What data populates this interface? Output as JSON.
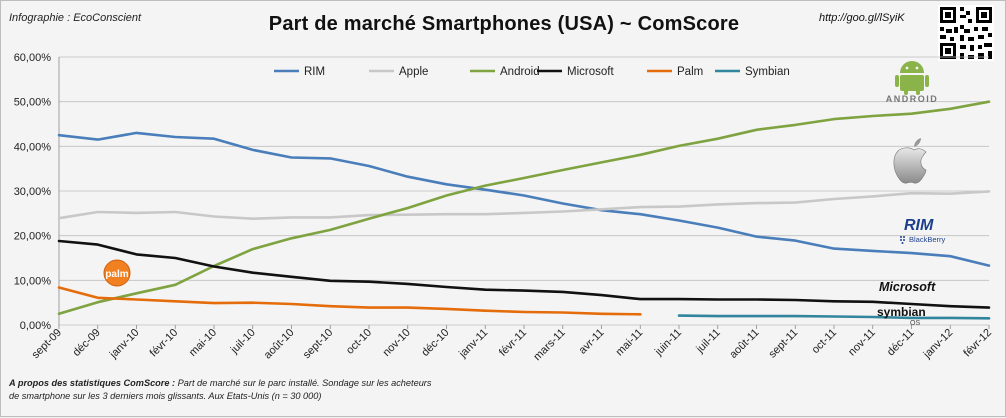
{
  "header": {
    "credit": "Infographie : EcoConscient",
    "url": "http://goo.gl/lSyiK"
  },
  "footnote": {
    "bold": "A propos des statistiques ComScore :",
    "text": " Part de marché sur le parc installé. Sondage sur les acheteurs de smartphone sur les 3 derniers mois glissants. Aux Etats-Unis (n = 30 000)"
  },
  "logos": {
    "palm": "palm",
    "android": "ANDROID",
    "rim": "RIM",
    "blackberry": "BlackBerry",
    "microsoft": "Microsoft",
    "symbian": "symbian",
    "symbian_os": "OS"
  },
  "chart_data": {
    "type": "line",
    "title": "Part de marché Smartphones (USA) ~ ComScore",
    "xlabel": "",
    "ylabel": "",
    "ylim": [
      0,
      0.6
    ],
    "yticks": [
      "0,00%",
      "10,00%",
      "20,00%",
      "30,00%",
      "40,00%",
      "50,00%",
      "60,00%"
    ],
    "grid": true,
    "legend_position": "top",
    "categories": [
      "sept-09",
      "déc-09",
      "janv-10",
      "févr-10",
      "mai-10",
      "juil-10",
      "août-10",
      "sept-10",
      "oct-10",
      "nov-10",
      "déc-10",
      "janv-11",
      "févr-11",
      "mars-11",
      "avr-11",
      "mai-11",
      "juin-11",
      "juil-11",
      "août-11",
      "sept-11",
      "oct-11",
      "nov-11",
      "déc-11",
      "janv-12",
      "févr-12"
    ],
    "series": [
      {
        "name": "RIM",
        "color": "#4a7ebb",
        "values": [
          0.425,
          0.415,
          0.43,
          0.421,
          0.417,
          0.392,
          0.375,
          0.373,
          0.356,
          0.332,
          0.315,
          0.303,
          0.29,
          0.272,
          0.257,
          0.248,
          0.234,
          0.218,
          0.198,
          0.189,
          0.171,
          0.166,
          0.161,
          0.154,
          0.133
        ]
      },
      {
        "name": "Apple",
        "color": "#c8c8c8",
        "values": [
          0.239,
          0.253,
          0.251,
          0.253,
          0.243,
          0.238,
          0.241,
          0.241,
          0.246,
          0.247,
          0.248,
          0.248,
          0.251,
          0.254,
          0.259,
          0.264,
          0.265,
          0.27,
          0.273,
          0.274,
          0.282,
          0.288,
          0.295,
          0.294,
          0.299
        ]
      },
      {
        "name": "Android",
        "color": "#7ea340",
        "values": [
          0.025,
          0.051,
          0.071,
          0.09,
          0.132,
          0.17,
          0.194,
          0.213,
          0.238,
          0.262,
          0.29,
          0.312,
          0.329,
          0.347,
          0.364,
          0.381,
          0.401,
          0.417,
          0.437,
          0.448,
          0.461,
          0.468,
          0.473,
          0.484,
          0.5
        ]
      },
      {
        "name": "Microsoft",
        "color": "#111111",
        "values": [
          0.188,
          0.18,
          0.158,
          0.15,
          0.131,
          0.117,
          0.108,
          0.099,
          0.097,
          0.092,
          0.085,
          0.079,
          0.077,
          0.074,
          0.067,
          0.058,
          0.058,
          0.057,
          0.057,
          0.056,
          0.053,
          0.052,
          0.047,
          0.042,
          0.039
        ]
      },
      {
        "name": "Palm",
        "color": "#e46c0a",
        "values": [
          0.084,
          0.061,
          0.057,
          0.053,
          0.049,
          0.05,
          0.047,
          0.042,
          0.039,
          0.039,
          0.036,
          0.032,
          0.029,
          0.028,
          0.025,
          0.024,
          null,
          null,
          null,
          null,
          null,
          null,
          null,
          null,
          null
        ]
      },
      {
        "name": "Symbian",
        "color": "#31859c",
        "values": [
          null,
          null,
          null,
          null,
          null,
          null,
          null,
          null,
          null,
          null,
          null,
          null,
          null,
          null,
          null,
          null,
          0.021,
          0.02,
          0.02,
          0.02,
          0.019,
          0.018,
          0.016,
          0.016,
          0.015
        ]
      }
    ]
  }
}
